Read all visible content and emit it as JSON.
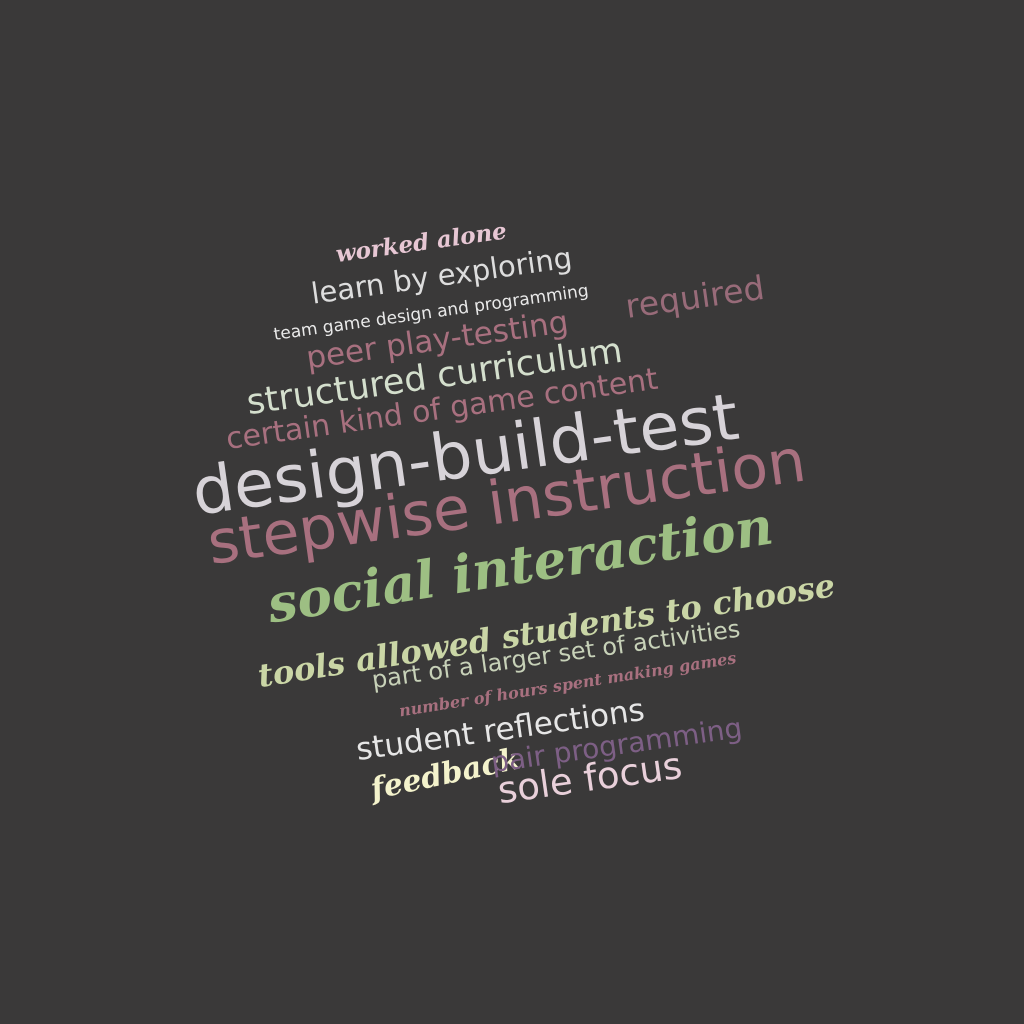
{
  "palette": {
    "background": "#3a3939",
    "light_gray": "#d8d3d6",
    "mauve": "#a8707f",
    "mauve_dark": "#9a6375",
    "pink": "#e6c3cf",
    "sage": "#9dbf83",
    "olive": "#cfd6a8",
    "cream": "#f4f3d0",
    "plum": "#7d5f85",
    "pale_pink": "#f0d3de",
    "taupe": "#c6b8be"
  },
  "words": [
    {
      "id": "worked-alone",
      "text": "worked alone"
    },
    {
      "id": "learn-by-exploring",
      "text": "learn by exploring"
    },
    {
      "id": "team-game-design",
      "text": "team game design and programming"
    },
    {
      "id": "peer-play-testing",
      "text": "peer play-testing"
    },
    {
      "id": "required",
      "text": "required"
    },
    {
      "id": "structured-curriculum",
      "text": "structured curriculum"
    },
    {
      "id": "certain-kind",
      "text": "certain kind of game content"
    },
    {
      "id": "design-build-test",
      "text": "design-build-test"
    },
    {
      "id": "stepwise-instruction",
      "text": "stepwise instruction"
    },
    {
      "id": "social-interaction",
      "text": "social interaction"
    },
    {
      "id": "tools-allowed",
      "text": "tools allowed students to choose"
    },
    {
      "id": "larger-set",
      "text": "part of a larger set of activities"
    },
    {
      "id": "number-hours",
      "text": "number of hours spent making games"
    },
    {
      "id": "student-reflections",
      "text": "student reflections"
    },
    {
      "id": "feedback",
      "text": "feedback"
    },
    {
      "id": "pair-programming",
      "text": "pair programming"
    },
    {
      "id": "sole-focus",
      "text": "sole focus"
    }
  ]
}
